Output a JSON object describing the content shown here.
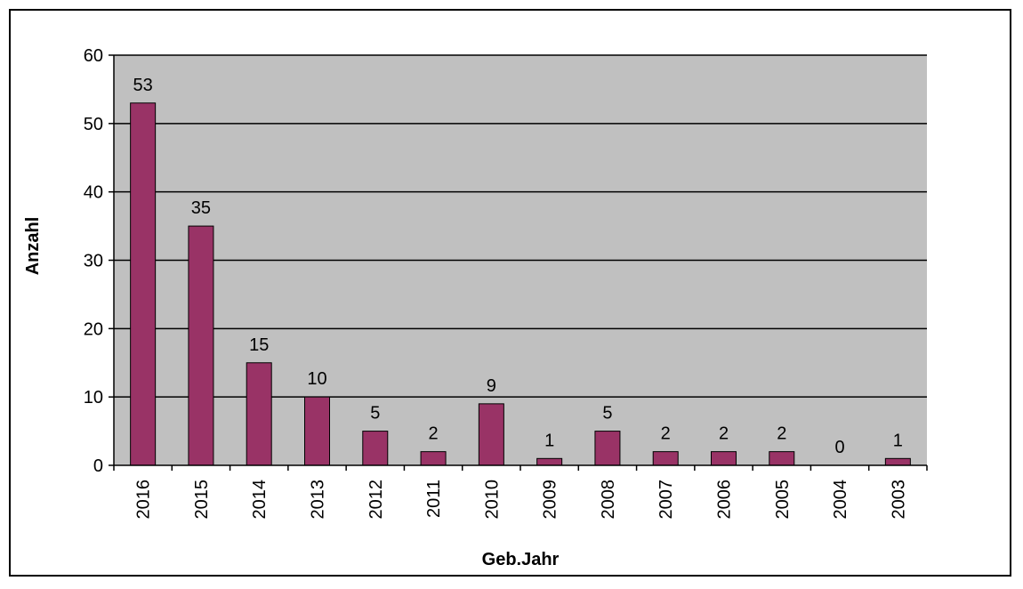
{
  "chart_data": {
    "type": "bar",
    "categories": [
      "2016",
      "2015",
      "2014",
      "2013",
      "2012",
      "2011",
      "2010",
      "2009",
      "2008",
      "2007",
      "2006",
      "2005",
      "2004",
      "2003"
    ],
    "values": [
      53,
      35,
      15,
      10,
      5,
      2,
      9,
      1,
      5,
      2,
      2,
      2,
      0,
      1
    ],
    "data_labels": [
      "53",
      "35",
      "15",
      "10",
      "5",
      "2",
      "9",
      "1",
      "5",
      "2",
      "2",
      "2",
      "0",
      "1"
    ],
    "xlabel": "Geb.Jahr",
    "ylabel": "Anzahl",
    "ylim": [
      0,
      60
    ],
    "yticks": [
      0,
      10,
      20,
      30,
      40,
      50,
      60
    ],
    "grid": true,
    "legend": "none",
    "colors": {
      "bar": "#993366",
      "plot_background": "#c0c0c0",
      "gridline": "#000000"
    }
  }
}
